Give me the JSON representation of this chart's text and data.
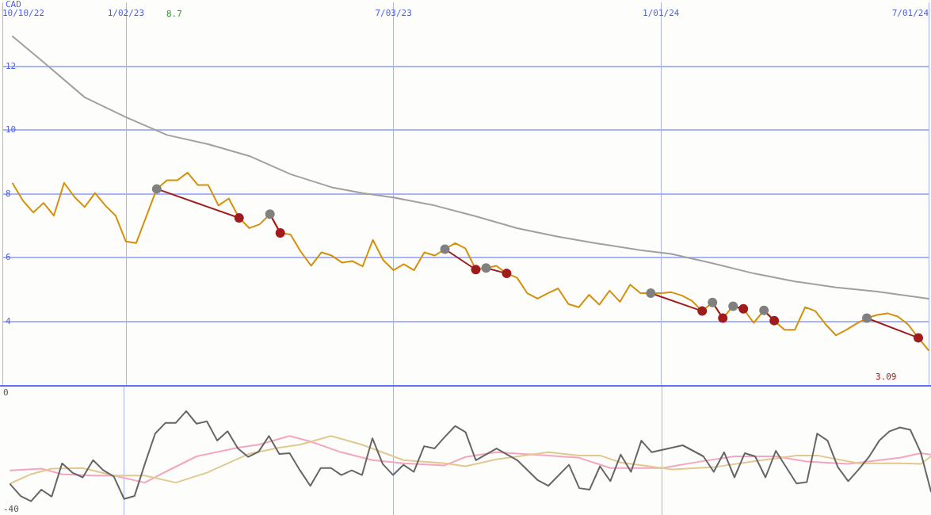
{
  "chart_data": [
    {
      "type": "line",
      "ylabel": "CAD",
      "xlim": [
        "2022-10-10",
        "2024-07-01"
      ],
      "ylim": [
        2,
        14
      ],
      "yticks": [
        4,
        6,
        8,
        10,
        12
      ],
      "xticks": [
        {
          "value": "2022-10-10",
          "label": "10/10/22"
        },
        {
          "value": "2023-01-02",
          "label": "1/02/23"
        },
        {
          "value": "2023-07-03",
          "label": "7/03/23"
        },
        {
          "value": "2024-01-01",
          "label": "1/01/24"
        },
        {
          "value": "2024-07-01",
          "label": "7/01/24"
        }
      ],
      "grid": true,
      "marker": "none",
      "line_style": "solid",
      "annotations": [
        "8.7",
        "3.09"
      ],
      "series": [
        {
          "color": "#a0a0a0",
          "x": [
            "2022-10-17",
            "2022-11-07",
            "2022-12-05",
            "2023-01-02",
            "2023-01-30",
            "2023-02-27",
            "2023-03-27",
            "2023-04-24",
            "2023-05-22",
            "2023-06-12",
            "2023-07-03",
            "2023-07-31",
            "2023-08-28",
            "2023-09-25",
            "2023-10-23",
            "2023-11-20",
            "2023-12-18",
            "2024-01-08",
            "2024-02-05",
            "2024-03-04",
            "2024-04-01",
            "2024-04-29",
            "2024-05-27",
            "2024-07-01"
          ],
          "values": [
            12.93,
            12.12,
            11.02,
            10.4,
            9.84,
            9.55,
            9.18,
            8.61,
            8.2,
            8.02,
            7.88,
            7.63,
            7.29,
            6.92,
            6.65,
            6.43,
            6.23,
            6.11,
            5.82,
            5.5,
            5.25,
            5.06,
            4.93,
            4.71
          ]
        },
        {
          "color": "#d4900a",
          "x": [
            "2022-10-17",
            "2022-10-24",
            "2022-10-31",
            "2022-11-07",
            "2022-11-14",
            "2022-11-21",
            "2022-11-28",
            "2022-12-05",
            "2022-12-12",
            "2022-12-19",
            "2022-12-26",
            "2023-01-02",
            "2023-01-09",
            "2023-01-16",
            "2023-01-23",
            "2023-01-30",
            "2023-02-06",
            "2023-02-13",
            "2023-02-20",
            "2023-02-27",
            "2023-03-06",
            "2023-03-13",
            "2023-03-20",
            "2023-03-27",
            "2023-04-03",
            "2023-04-10",
            "2023-04-17",
            "2023-04-24",
            "2023-05-01",
            "2023-05-08",
            "2023-05-15",
            "2023-05-22",
            "2023-05-29",
            "2023-06-05",
            "2023-06-12",
            "2023-06-19",
            "2023-06-26",
            "2023-07-03",
            "2023-07-10",
            "2023-07-17",
            "2023-07-24",
            "2023-07-31",
            "2023-08-07",
            "2023-08-14",
            "2023-08-21",
            "2023-08-28",
            "2023-09-04",
            "2023-09-11",
            "2023-09-18",
            "2023-09-25",
            "2023-10-02",
            "2023-10-09",
            "2023-10-16",
            "2023-10-23",
            "2023-10-30",
            "2023-11-06",
            "2023-11-13",
            "2023-11-20",
            "2023-11-27",
            "2023-12-04",
            "2023-12-11",
            "2023-12-18",
            "2023-12-25",
            "2024-01-01",
            "2024-01-08",
            "2024-01-15",
            "2024-01-22",
            "2024-01-29",
            "2024-02-05",
            "2024-02-12",
            "2024-02-19",
            "2024-02-26",
            "2024-03-04",
            "2024-03-11",
            "2024-03-18",
            "2024-03-25",
            "2024-04-01",
            "2024-04-08",
            "2024-04-15",
            "2024-04-22",
            "2024-04-29",
            "2024-05-06",
            "2024-05-13",
            "2024-05-20",
            "2024-05-27",
            "2024-06-03",
            "2024-06-10",
            "2024-06-17",
            "2024-06-24",
            "2024-07-01"
          ],
          "values": [
            8.32,
            7.78,
            7.41,
            7.71,
            7.31,
            8.34,
            7.9,
            7.58,
            8.02,
            7.63,
            7.31,
            6.5,
            6.45,
            7.3,
            8.15,
            8.42,
            8.42,
            8.66,
            8.27,
            8.27,
            7.63,
            7.85,
            7.24,
            6.92,
            7.04,
            7.36,
            6.77,
            6.72,
            6.18,
            5.74,
            6.16,
            6.06,
            5.84,
            5.89,
            5.72,
            6.55,
            5.92,
            5.6,
            5.79,
            5.6,
            6.16,
            6.06,
            6.26,
            6.45,
            6.28,
            5.62,
            5.67,
            5.74,
            5.5,
            5.37,
            4.88,
            4.71,
            4.88,
            5.03,
            4.54,
            4.44,
            4.83,
            4.52,
            4.96,
            4.61,
            5.15,
            4.88,
            4.88,
            4.88,
            4.91,
            4.81,
            4.64,
            4.32,
            4.59,
            4.1,
            4.47,
            4.39,
            3.95,
            4.34,
            4.02,
            3.73,
            3.73,
            4.44,
            4.32,
            3.9,
            3.56,
            3.73,
            3.93,
            4.1,
            4.2,
            4.25,
            4.15,
            3.9,
            3.48,
            3.09
          ]
        },
        {
          "color": "#a01c1c",
          "marker": "circle",
          "colors": [
            "#808080",
            "#a01c1c"
          ],
          "x": [
            "2023-01-23",
            "2023-03-20"
          ],
          "values": [
            8.15,
            7.24
          ]
        },
        {
          "color": "#a01c1c",
          "marker": "circle",
          "colors": [
            "#808080",
            "#a01c1c"
          ],
          "x": [
            "2023-04-10",
            "2023-04-17"
          ],
          "values": [
            7.36,
            6.77
          ]
        },
        {
          "color": "#a01c1c",
          "marker": "circle",
          "colors": [
            "#808080",
            "#a01c1c"
          ],
          "x": [
            "2023-08-07",
            "2023-08-28"
          ],
          "values": [
            6.26,
            5.62
          ]
        },
        {
          "color": "#a01c1c",
          "marker": "circle",
          "colors": [
            "#808080",
            "#a01c1c"
          ],
          "x": [
            "2023-09-04",
            "2023-09-18"
          ],
          "values": [
            5.67,
            5.5
          ]
        },
        {
          "color": "#a01c1c",
          "marker": "circle",
          "colors": [
            "#808080",
            "#a01c1c"
          ],
          "x": [
            "2023-12-25",
            "2024-01-29"
          ],
          "values": [
            4.88,
            4.32
          ]
        },
        {
          "color": "#a01c1c",
          "marker": "circle",
          "colors": [
            "#808080",
            "#a01c1c"
          ],
          "x": [
            "2024-02-05",
            "2024-02-12"
          ],
          "values": [
            4.59,
            4.1
          ]
        },
        {
          "color": "#a01c1c",
          "marker": "circle",
          "colors": [
            "#808080",
            "#a01c1c"
          ],
          "x": [
            "2024-02-19",
            "2024-02-26"
          ],
          "values": [
            4.47,
            4.39
          ]
        },
        {
          "color": "#a01c1c",
          "marker": "circle",
          "colors": [
            "#808080",
            "#a01c1c"
          ],
          "x": [
            "2024-03-11",
            "2024-03-18"
          ],
          "values": [
            4.34,
            4.02
          ]
        },
        {
          "color": "#a01c1c",
          "marker": "circle",
          "colors": [
            "#808080",
            "#a01c1c"
          ],
          "x": [
            "2024-05-20",
            "2024-06-24"
          ],
          "values": [
            4.1,
            3.48
          ]
        }
      ]
    },
    {
      "type": "line",
      "xlim": [
        "2022-10-10",
        "2024-07-01"
      ],
      "ylim": [
        -42,
        2
      ],
      "yticks": [
        -40,
        0
      ],
      "tick_labels": "y",
      "xticks": [
        {
          "value": "2023-01-02",
          "label": null
        },
        {
          "value": "2023-07-03",
          "label": null
        },
        {
          "value": "2024-01-01",
          "label": null
        }
      ],
      "grid": "x",
      "marker": "none",
      "line_style": "solid",
      "series": [
        {
          "color": "#f4a6c0",
          "x": [
            "2022-10-17",
            "2022-11-07",
            "2022-11-21",
            "2022-12-12",
            "2022-12-26",
            "2023-01-16",
            "2023-01-30",
            "2023-02-20",
            "2023-03-20",
            "2023-04-03",
            "2023-04-24",
            "2023-05-08",
            "2023-05-29",
            "2023-06-19",
            "2023-07-10",
            "2023-08-07",
            "2023-08-21",
            "2023-09-11",
            "2023-10-16",
            "2023-11-06",
            "2023-11-27",
            "2024-01-01",
            "2024-01-29",
            "2024-02-19",
            "2024-03-18",
            "2024-04-08",
            "2024-05-06",
            "2024-06-10",
            "2024-06-24",
            "2024-07-01"
          ],
          "values": [
            -26.7,
            -26.1,
            -28,
            -28.5,
            -28.5,
            -30.9,
            -27.2,
            -21.9,
            -18.9,
            -17.9,
            -14.9,
            -16.8,
            -20.5,
            -23.2,
            -24.3,
            -25,
            -22.1,
            -20.5,
            -21.6,
            -22.4,
            -25.9,
            -25.9,
            -23.5,
            -21.9,
            -21.9,
            -23.7,
            -24.5,
            -22.4,
            -20.8,
            -21.3
          ]
        },
        {
          "color": "#e0c890",
          "x": [
            "2022-10-17",
            "2022-10-31",
            "2022-11-14",
            "2022-12-05",
            "2022-12-26",
            "2023-01-16",
            "2023-02-06",
            "2023-02-27",
            "2023-03-27",
            "2023-04-17",
            "2023-05-01",
            "2023-05-22",
            "2023-06-12",
            "2023-07-10",
            "2023-08-07",
            "2023-08-21",
            "2023-09-11",
            "2023-10-16",
            "2023-11-06",
            "2023-11-20",
            "2023-12-04",
            "2024-01-08",
            "2024-02-05",
            "2024-03-04",
            "2024-04-01",
            "2024-04-15",
            "2024-05-13",
            "2024-06-10",
            "2024-06-24",
            "2024-07-01"
          ],
          "values": [
            -31.2,
            -28,
            -26.1,
            -25.9,
            -28.5,
            -28.5,
            -30.9,
            -27.5,
            -21.1,
            -18.9,
            -17.9,
            -14.9,
            -17.9,
            -23.2,
            -24.3,
            -25.3,
            -22.9,
            -20.5,
            -21.6,
            -21.6,
            -24,
            -26.4,
            -25.6,
            -23.5,
            -21.6,
            -21.6,
            -24.3,
            -24.3,
            -24.5,
            -21.9
          ]
        },
        {
          "color": "#666666",
          "x": [
            "2022-10-17",
            "2022-10-24",
            "2022-10-31",
            "2022-11-07",
            "2022-11-14",
            "2022-11-21",
            "2022-11-28",
            "2022-12-05",
            "2022-12-12",
            "2022-12-19",
            "2022-12-26",
            "2023-01-02",
            "2023-01-09",
            "2023-01-16",
            "2023-01-23",
            "2023-01-30",
            "2023-02-06",
            "2023-02-13",
            "2023-02-20",
            "2023-02-27",
            "2023-03-06",
            "2023-03-13",
            "2023-03-20",
            "2023-03-27",
            "2023-04-03",
            "2023-04-10",
            "2023-04-17",
            "2023-04-24",
            "2023-05-01",
            "2023-05-08",
            "2023-05-15",
            "2023-05-22",
            "2023-05-29",
            "2023-06-05",
            "2023-06-12",
            "2023-06-19",
            "2023-06-26",
            "2023-07-03",
            "2023-07-10",
            "2023-07-17",
            "2023-07-24",
            "2023-07-31",
            "2023-08-07",
            "2023-08-14",
            "2023-08-21",
            "2023-08-28",
            "2023-09-11",
            "2023-09-25",
            "2023-10-09",
            "2023-10-16",
            "2023-10-30",
            "2023-11-06",
            "2023-11-13",
            "2023-11-20",
            "2023-11-27",
            "2023-12-04",
            "2023-12-11",
            "2023-12-18",
            "2023-12-25",
            "2024-01-15",
            "2024-01-29",
            "2024-02-05",
            "2024-02-12",
            "2024-02-19",
            "2024-02-26",
            "2024-03-04",
            "2024-03-11",
            "2024-03-18",
            "2024-04-01",
            "2024-04-08",
            "2024-04-15",
            "2024-04-22",
            "2024-04-29",
            "2024-05-06",
            "2024-05-13",
            "2024-05-20",
            "2024-05-27",
            "2024-06-03",
            "2024-06-10",
            "2024-06-17",
            "2024-06-24",
            "2024-07-01"
          ],
          "values": [
            -31.5,
            -35.5,
            -37.3,
            -33.3,
            -35.7,
            -24.3,
            -27.5,
            -29.1,
            -23.2,
            -26.7,
            -28.8,
            -36.5,
            -35.5,
            -24.5,
            -14.1,
            -10.4,
            -10.4,
            -6.4,
            -10.7,
            -9.9,
            -16.5,
            -13.3,
            -19.2,
            -22.1,
            -20.3,
            -14.9,
            -21.1,
            -20.8,
            -26.7,
            -32,
            -25.9,
            -25.9,
            -28.3,
            -26.7,
            -28.3,
            -15.7,
            -24.5,
            -28.3,
            -24.8,
            -27.2,
            -18.4,
            -19.2,
            -15.2,
            -11.5,
            -13.6,
            -23.2,
            -19.2,
            -23.2,
            -30.1,
            -32,
            -24.8,
            -32.8,
            -33.3,
            -25.3,
            -30.4,
            -21.3,
            -27.2,
            -16.5,
            -20.5,
            -18.1,
            -21.9,
            -27.2,
            -20.5,
            -29.1,
            -20.8,
            -21.9,
            -29.1,
            -20,
            -31.2,
            -30.7,
            -14.1,
            -16.5,
            -25.6,
            -30.4,
            -26.4,
            -22.1,
            -16.5,
            -13.3,
            -12,
            -12.8,
            -20.5,
            -34
          ]
        }
      ]
    }
  ]
}
